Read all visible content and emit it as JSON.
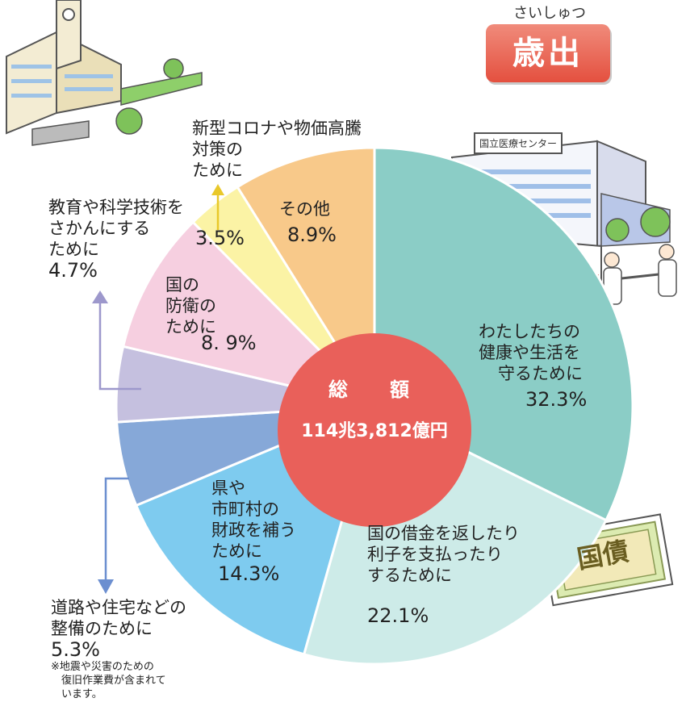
{
  "header": {
    "ruby": "さいしゅつ",
    "title": "歳出"
  },
  "center": {
    "label": "総　額",
    "total": "114兆3,812億円"
  },
  "labels": {
    "health": [
      "わたしたちの",
      "健康や生活を",
      "守るために"
    ],
    "debt": [
      "国の借金を返したり",
      "利子を支払ったり",
      "するために"
    ],
    "local": [
      "県や",
      "市町村の",
      "財政を補う",
      "ために"
    ],
    "roads": [
      "道路や住宅などの",
      "整備のために"
    ],
    "roads_note": [
      "※地震や災害のための",
      "　復旧作業費が含まれて",
      "　います。"
    ],
    "education": [
      "教育や科学技術を",
      "さかんにする",
      "ために"
    ],
    "defense": [
      "国の",
      "防衛の",
      "ために"
    ],
    "covid": [
      "新型コロナや物価高騰",
      "対策の",
      "ために"
    ],
    "other": [
      "その他"
    ]
  },
  "illustrations": {
    "hospital_sign": "国立医療センター",
    "bond": "国債"
  },
  "chart_data": {
    "type": "pie",
    "title": "歳出",
    "total": "114兆3,812億円",
    "slices": [
      {
        "name": "わたしたちの健康や生活を守るために",
        "value": 32.3,
        "label": "32.3%",
        "color": "#8bcdc6"
      },
      {
        "name": "国の借金を返したり利子を支払ったりするために",
        "value": 22.1,
        "label": "22.1%",
        "color": "#cdebe8"
      },
      {
        "name": "県や市町村の財政を補うために",
        "value": 14.3,
        "label": "14.3%",
        "color": "#7ecbef"
      },
      {
        "name": "道路や住宅などの整備のために",
        "value": 5.3,
        "label": "5.3%",
        "color": "#86a8d8"
      },
      {
        "name": "教育や科学技術をさかんにするために",
        "value": 4.7,
        "label": "4.7%",
        "color": "#c5c0df"
      },
      {
        "name": "国の防衛のために",
        "value": 8.9,
        "label": "8. 9%",
        "color": "#f6cfe0"
      },
      {
        "name": "新型コロナや物価高騰対策のために",
        "value": 3.5,
        "label": "3.5%",
        "color": "#fbf3a5"
      },
      {
        "name": "その他",
        "value": 8.9,
        "label": "8.9%",
        "color": "#f8c98a"
      }
    ]
  }
}
